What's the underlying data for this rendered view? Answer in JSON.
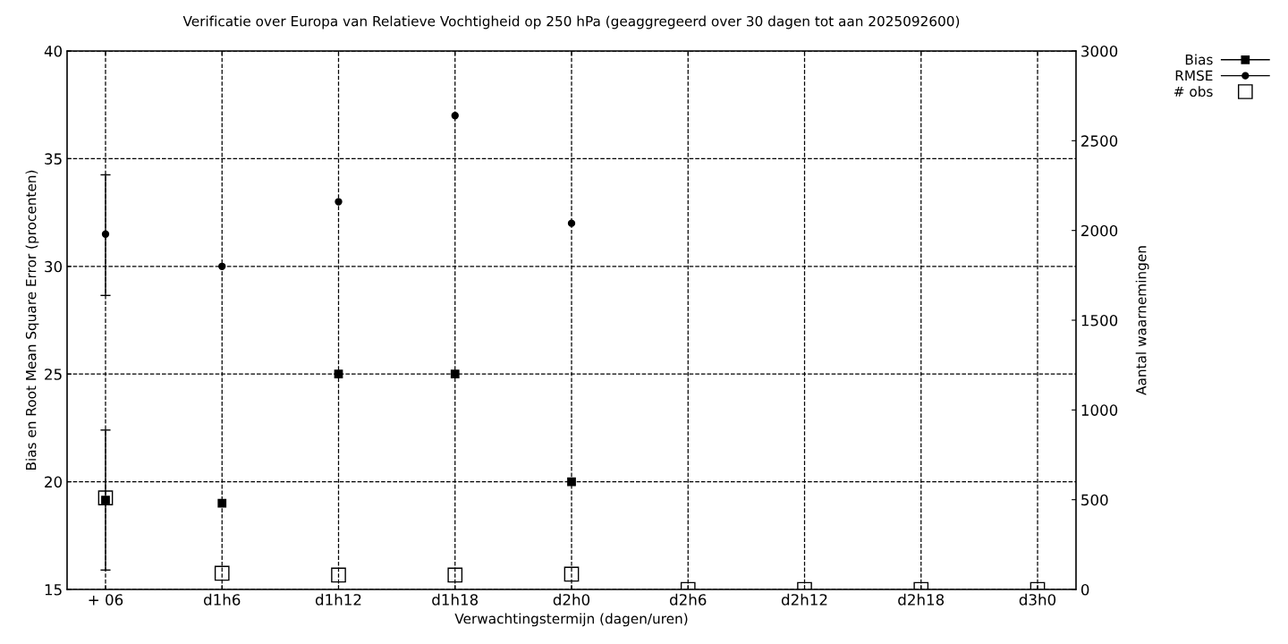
{
  "chart_data": {
    "type": "scatter",
    "title": "Verificatie over Europa van Relatieve Vochtigheid op 250 hPa (geaggregeerd over 30 dagen tot aan 2025092600)",
    "xlabel": "Verwachtingstermijn (dagen/uren)",
    "ylabel": "Bias en Root Mean Square Error (procenten)",
    "y2label": "Aantal waarnemingen",
    "categories": [
      "+ 06",
      "d1h6",
      "d1h12",
      "d1h18",
      "d2h0",
      "d2h6",
      "d2h12",
      "d2h18",
      "d3h0"
    ],
    "series": [
      {
        "name": "Bias",
        "color": "#000000",
        "marker": "square",
        "values": [
          19.15,
          19.0,
          25.0,
          25.0,
          20.0,
          null,
          null,
          null,
          null
        ],
        "errors": [
          [
            15.9,
            22.4
          ],
          null,
          null,
          null,
          null,
          null,
          null,
          null,
          null
        ]
      },
      {
        "name": "RMSE",
        "color": "#000000",
        "marker": "circle",
        "values": [
          31.5,
          30.0,
          33.0,
          37.0,
          32.0,
          null,
          null,
          null,
          null
        ],
        "errors": [
          [
            28.65,
            34.25
          ],
          null,
          null,
          null,
          null,
          null,
          null,
          null,
          null
        ]
      },
      {
        "name": "# obs",
        "color": "#000000",
        "marker": "square",
        "axis": "y2",
        "values": [
          510,
          90,
          80,
          80,
          85,
          0,
          0,
          0,
          0
        ]
      }
    ],
    "ylim": [
      15,
      40
    ],
    "yticks": [
      15,
      20,
      25,
      30,
      35,
      40
    ],
    "y2lim": [
      0,
      3000
    ],
    "y2ticks": [
      0,
      500,
      1000,
      1500,
      2000,
      2500,
      3000
    ],
    "grid": true,
    "line_style": "dashed",
    "legend": "top right"
  }
}
